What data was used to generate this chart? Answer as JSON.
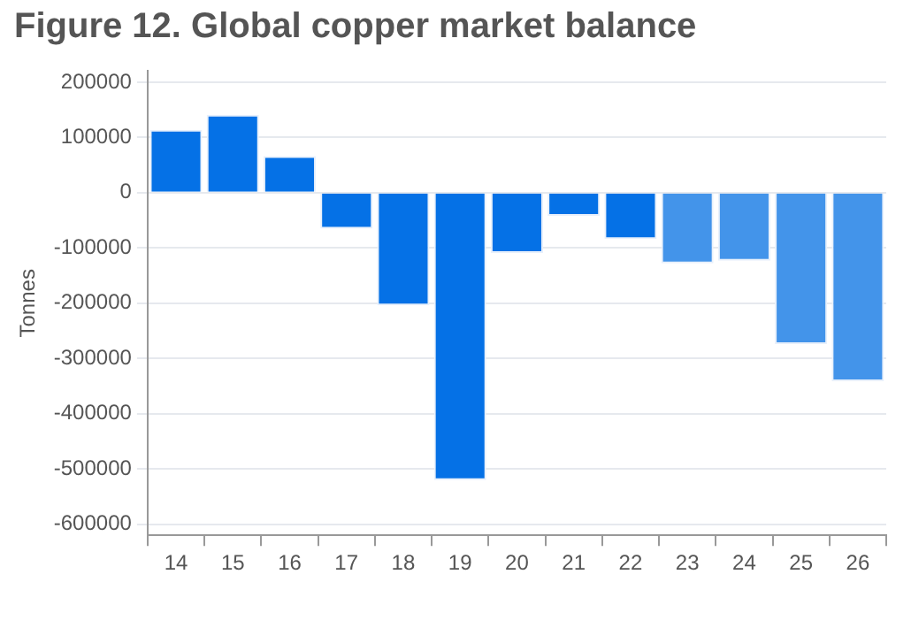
{
  "chart_data": {
    "type": "bar",
    "title": "Figure 12.  Global copper market balance",
    "ylabel": "Tonnes",
    "categories": [
      "14",
      "15",
      "16",
      "17",
      "18",
      "19",
      "20",
      "21",
      "22",
      "23",
      "24",
      "25",
      "26"
    ],
    "values": [
      114000,
      141000,
      66000,
      -65000,
      -204000,
      -520000,
      -109000,
      -42000,
      -84000,
      -128000,
      -123000,
      -274000,
      -341000
    ],
    "colors": [
      "#0571e6",
      "#0571e6",
      "#0571e6",
      "#0571e6",
      "#0571e6",
      "#0571e6",
      "#0571e6",
      "#0571e6",
      "#0571e6",
      "#4394ea",
      "#4394ea",
      "#4394ea",
      "#4394ea"
    ],
    "ylim": [
      -620000,
      220000
    ],
    "yticks": [
      -600000,
      -500000,
      -400000,
      -300000,
      -200000,
      -100000,
      0,
      100000,
      200000
    ],
    "grid": "y"
  }
}
